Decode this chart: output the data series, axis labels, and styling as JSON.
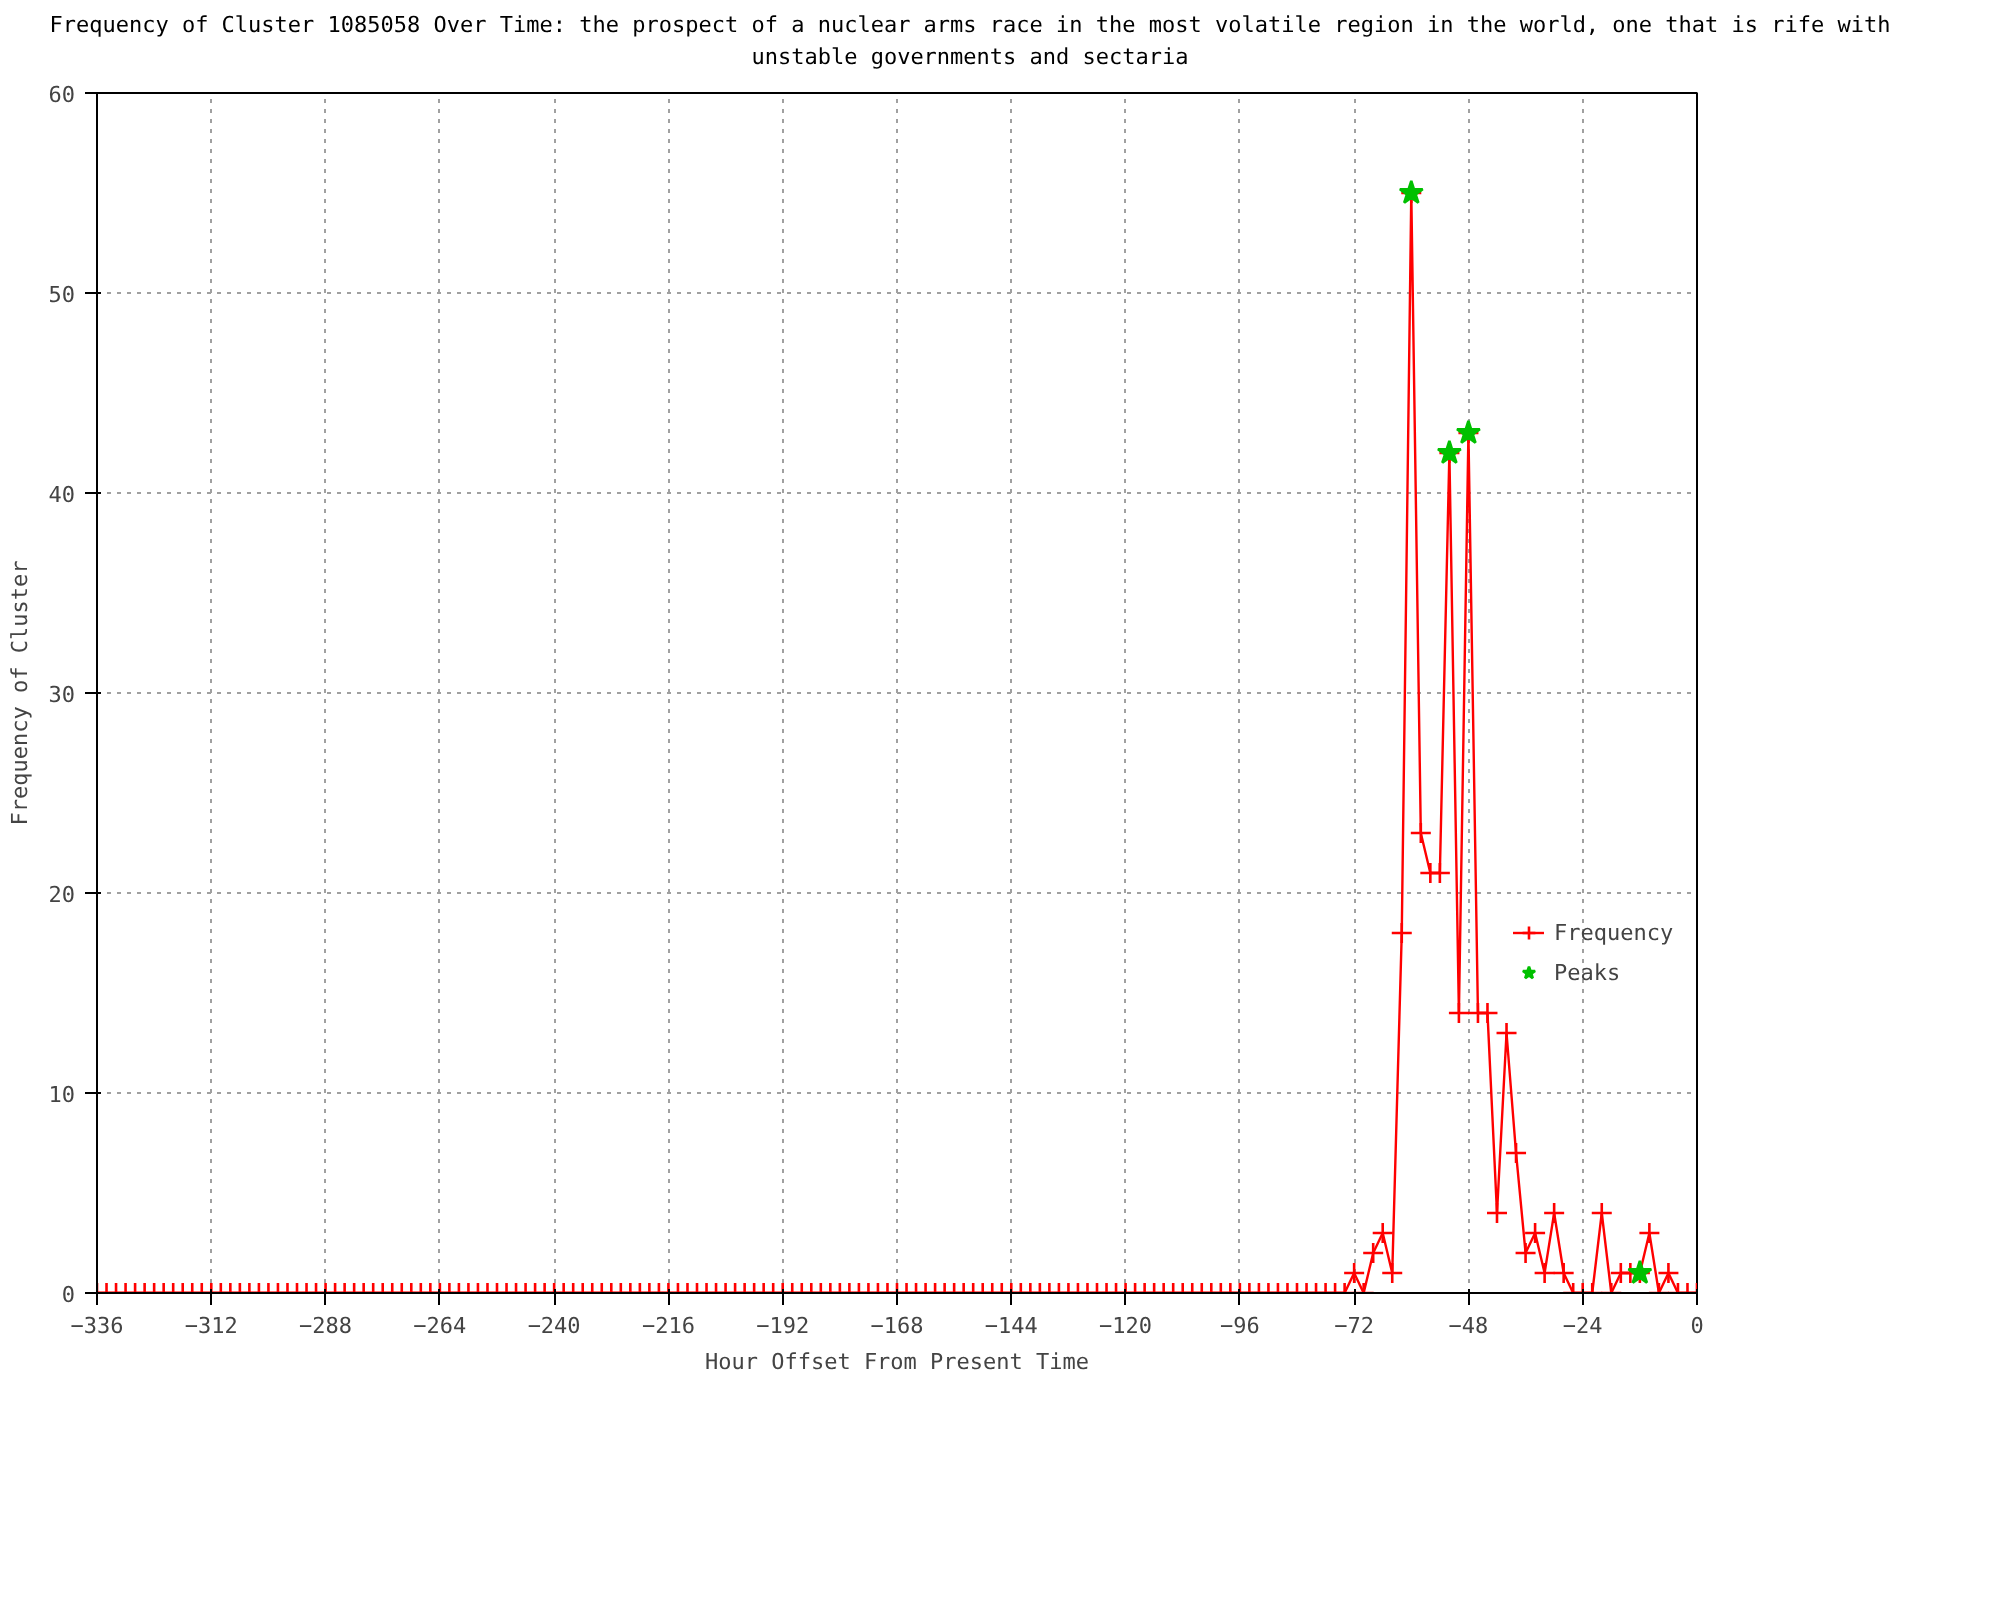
{
  "chart_data": {
    "type": "line",
    "title": "Frequency of Cluster 1085058 Over Time: the prospect of a nuclear arms race in the most volatile region in the world, one that is rife with unstable governments and sectaria",
    "xlabel": "Hour Offset From Present Time",
    "ylabel": "Frequency of Cluster",
    "xlim": [
      -336,
      0
    ],
    "xticks": [
      -336,
      -312,
      -288,
      -264,
      -240,
      -216,
      -192,
      -168,
      -144,
      -120,
      -96,
      -72,
      -48,
      -24,
      0
    ],
    "ylim": [
      0,
      60
    ],
    "yticks": [
      0,
      10,
      20,
      30,
      40,
      50,
      60
    ],
    "grid": true,
    "legend": "bottom right",
    "series": [
      {
        "name": "Frequency",
        "type": "line",
        "marker": "cross",
        "color": "#ff0000",
        "x": [
          -336,
          -334,
          -332,
          -330,
          -328,
          -326,
          -324,
          -322,
          -320,
          -318,
          -316,
          -314,
          -312,
          -310,
          -308,
          -306,
          -304,
          -302,
          -300,
          -298,
          -296,
          -294,
          -292,
          -290,
          -288,
          -286,
          -284,
          -282,
          -280,
          -278,
          -276,
          -274,
          -272,
          -270,
          -268,
          -266,
          -264,
          -262,
          -260,
          -258,
          -256,
          -254,
          -252,
          -250,
          -248,
          -246,
          -244,
          -242,
          -240,
          -238,
          -236,
          -234,
          -232,
          -230,
          -228,
          -226,
          -224,
          -222,
          -220,
          -218,
          -216,
          -214,
          -212,
          -210,
          -208,
          -206,
          -204,
          -202,
          -200,
          -198,
          -196,
          -194,
          -192,
          -190,
          -188,
          -186,
          -184,
          -182,
          -180,
          -178,
          -176,
          -174,
          -172,
          -170,
          -168,
          -166,
          -164,
          -162,
          -160,
          -158,
          -156,
          -154,
          -152,
          -150,
          -148,
          -146,
          -144,
          -142,
          -140,
          -138,
          -136,
          -134,
          -132,
          -130,
          -128,
          -126,
          -124,
          -122,
          -120,
          -118,
          -116,
          -114,
          -112,
          -110,
          -108,
          -106,
          -104,
          -102,
          -100,
          -98,
          -96,
          -94,
          -92,
          -90,
          -88,
          -86,
          -84,
          -82,
          -80,
          -78,
          -76,
          -74,
          -72,
          -70,
          -68,
          -66,
          -64,
          -62,
          -60,
          -58,
          -56,
          -54,
          -52,
          -50,
          -48,
          -46,
          -44,
          -42,
          -40,
          -38,
          -36,
          -34,
          -32,
          -30,
          -28,
          -26,
          -24,
          -22,
          -20,
          -18,
          -16,
          -14,
          -12,
          -10,
          -8,
          -6,
          -4,
          -2,
          0
        ],
        "values": [
          0,
          0,
          0,
          0,
          0,
          0,
          0,
          0,
          0,
          0,
          0,
          0,
          0,
          0,
          0,
          0,
          0,
          0,
          0,
          0,
          0,
          0,
          0,
          0,
          0,
          0,
          0,
          0,
          0,
          0,
          0,
          0,
          0,
          0,
          0,
          0,
          0,
          0,
          0,
          0,
          0,
          0,
          0,
          0,
          0,
          0,
          0,
          0,
          0,
          0,
          0,
          0,
          0,
          0,
          0,
          0,
          0,
          0,
          0,
          0,
          0,
          0,
          0,
          0,
          0,
          0,
          0,
          0,
          0,
          0,
          0,
          0,
          0,
          0,
          0,
          0,
          0,
          0,
          0,
          0,
          0,
          0,
          0,
          0,
          0,
          0,
          0,
          0,
          0,
          0,
          0,
          0,
          0,
          0,
          0,
          0,
          0,
          0,
          0,
          0,
          0,
          0,
          0,
          0,
          0,
          0,
          0,
          0,
          0,
          0,
          0,
          0,
          0,
          0,
          0,
          0,
          0,
          0,
          0,
          0,
          0,
          0,
          0,
          0,
          0,
          0,
          0,
          0,
          0,
          0,
          0,
          0,
          1,
          0,
          2,
          3,
          1,
          18,
          55,
          23,
          21,
          21,
          42,
          14,
          43,
          14,
          14,
          4,
          13,
          7,
          2,
          3,
          1,
          4,
          1,
          0,
          0,
          0,
          4,
          0,
          1,
          1,
          1,
          3,
          0,
          1,
          0,
          0,
          0
        ]
      },
      {
        "name": "Peaks",
        "type": "scatter",
        "marker": "star",
        "color": "#00c000",
        "x": [
          -60,
          -52,
          -48,
          -12
        ],
        "values": [
          55,
          42,
          43,
          1
        ]
      }
    ]
  }
}
